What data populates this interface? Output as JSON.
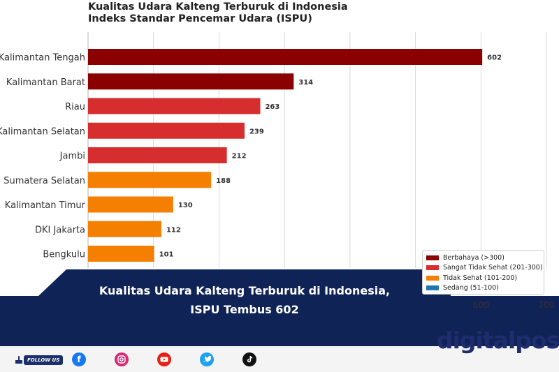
{
  "chart_data": {
    "type": "bar",
    "orientation": "horizontal",
    "title_line1": "Kualitas Udara Kalteng Terburuk di Indonesia",
    "title_line2": "Indeks Standar Pencemar Udara (ISPU)",
    "categories": [
      "Kalimantan Tengah",
      "Kalimantan Barat",
      "Riau",
      "Kalimantan Selatan",
      "Jambi",
      "Sumatera Selatan",
      "Kalimantan Timur",
      "DKI Jakarta",
      "Bengkulu"
    ],
    "values": [
      602,
      314,
      263,
      239,
      212,
      188,
      130,
      112,
      101
    ],
    "bar_colors": [
      "#8b0000",
      "#8b0000",
      "#d62e2e",
      "#d62e2e",
      "#d62e2e",
      "#f57f00",
      "#f57f00",
      "#f57f00",
      "#f57f00"
    ],
    "xlim": [
      0,
      700
    ],
    "visible_x_ticks": [
      600,
      700
    ],
    "grid": true,
    "legend_position": "bottom-right",
    "legend": [
      {
        "label": "Berbahaya (>300)",
        "color": "#8b0000"
      },
      {
        "label": "Sangat Tidak Sehat (201-300)",
        "color": "#d62e2e"
      },
      {
        "label": "Tidak Sehat (101-200)",
        "color": "#f57f00"
      },
      {
        "label": "Sedang (51-100)",
        "color": "#1f77b4"
      }
    ]
  },
  "banner": {
    "headline_line1": "Kualitas Udara Kalteng Terburuk di Indonesia,",
    "headline_line2": "ISPU Tembus 602",
    "color": "#0f2357"
  },
  "footer": {
    "follow_label": "FOLLOW US",
    "social_icons": [
      "facebook-icon",
      "instagram-icon",
      "youtube-icon",
      "twitter-icon",
      "tiktok-icon"
    ],
    "brand": "digitalpos"
  }
}
